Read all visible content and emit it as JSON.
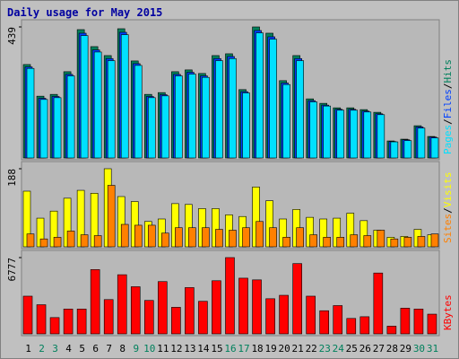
{
  "chart_data": {
    "type": "bar",
    "title": "Daily usage for May 2015",
    "title_color": "#0000a0",
    "categories": [
      "1",
      "2",
      "3",
      "4",
      "5",
      "6",
      "7",
      "8",
      "9",
      "10",
      "11",
      "12",
      "13",
      "14",
      "15",
      "16",
      "17",
      "18",
      "19",
      "20",
      "21",
      "22",
      "23",
      "24",
      "25",
      "26",
      "27",
      "28",
      "29",
      "30",
      "31"
    ],
    "category_colors": [
      "#000000",
      "#00805c",
      "#00805c",
      "#000000",
      "#000000",
      "#000000",
      "#000000",
      "#000000",
      "#00805c",
      "#00805c",
      "#000000",
      "#000000",
      "#000000",
      "#000000",
      "#000000",
      "#00805c",
      "#00805c",
      "#000000",
      "#000000",
      "#000000",
      "#000000",
      "#000000",
      "#00805c",
      "#00805c",
      "#000000",
      "#000000",
      "#000000",
      "#000000",
      "#000000",
      "#00805c",
      "#00805c"
    ],
    "legend_separator": "/",
    "panels": [
      {
        "ylim": [
          0,
          439
        ],
        "yticks": [
          439
        ],
        "series": [
          {
            "name": "Hits",
            "color": "#00805c",
            "values": [
              313,
              207,
              213,
              289,
              430,
              373,
              343,
              433,
              325,
              213,
              219,
              289,
              295,
              283,
              343,
              349,
              229,
              439,
              418,
              259,
              343,
              198,
              183,
              168,
              168,
              162,
              153,
              57,
              63,
              108,
              72
            ]
          },
          {
            "name": "Files",
            "color": "#0040ff",
            "values": [
              305,
              200,
              206,
              280,
              418,
              362,
              333,
              421,
              316,
              206,
              212,
              280,
              287,
              275,
              333,
              340,
              222,
              427,
              406,
              251,
              333,
              192,
              177,
              163,
              163,
              157,
              148,
              55,
              61,
              104,
              70
            ]
          },
          {
            "name": "Pages",
            "color": "#00e0ff",
            "values": [
              300,
              196,
              202,
              275,
              410,
              355,
              326,
              413,
              310,
              202,
              208,
              275,
              281,
              270,
              326,
              333,
              218,
              419,
              398,
              246,
              326,
              188,
              174,
              160,
              160,
              154,
              145,
              54,
              58,
              100,
              67
            ]
          }
        ]
      },
      {
        "ylim": [
          0,
          188
        ],
        "yticks": [
          188
        ],
        "series": [
          {
            "name": "Visits",
            "color": "#ffff00",
            "values": [
              134,
              69,
              86,
              117,
              136,
              129,
              188,
              121,
              109,
              61,
              67,
              104,
              102,
              92,
              92,
              77,
              73,
              144,
              111,
              67,
              90,
              71,
              67,
              69,
              81,
              63,
              40,
              23,
              25,
              42,
              29
            ]
          },
          {
            "name": "Sites",
            "color": "#ff8000",
            "values": [
              31,
              19,
              23,
              38,
              29,
              27,
              148,
              54,
              52,
              52,
              33,
              46,
              46,
              46,
              42,
              40,
              46,
              61,
              46,
              23,
              46,
              29,
              23,
              23,
              29,
              27,
              40,
              19,
              23,
              25,
              31
            ]
          }
        ]
      },
      {
        "ylim": [
          0,
          6777
        ],
        "yticks": [
          6777
        ],
        "series": [
          {
            "name": "KBytes",
            "color": "#ff0000",
            "values": [
              3350,
              2589,
              1447,
              2208,
              2208,
              5711,
              3046,
              5254,
              4188,
              2970,
              4645,
              2360,
              4112,
              2893,
              4721,
              6777,
              4949,
              4797,
              3122,
              3427,
              6244,
              3350,
              2056,
              2513,
              1371,
              1523,
              5406,
              685,
              2284,
              2208,
              1751
            ]
          }
        ]
      }
    ]
  }
}
